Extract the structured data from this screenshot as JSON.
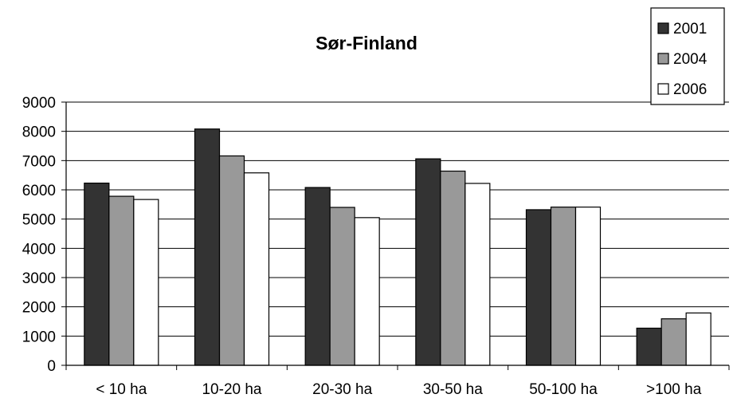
{
  "chart_data": {
    "type": "bar",
    "title": "Sør-Finland",
    "xlabel": "",
    "ylabel": "",
    "categories": [
      "< 10 ha",
      "10-20 ha",
      "20-30 ha",
      "30-50 ha",
      "50-100 ha",
      ">100 ha"
    ],
    "series": [
      {
        "name": "2001",
        "color": "#333333",
        "values": [
          6230,
          8080,
          6080,
          7060,
          5320,
          1270
        ]
      },
      {
        "name": "2004",
        "color": "#999999",
        "values": [
          5780,
          7160,
          5400,
          6640,
          5410,
          1590
        ]
      },
      {
        "name": "2006",
        "color": "#ffffff",
        "values": [
          5670,
          6580,
          5050,
          6220,
          5410,
          1790
        ]
      }
    ],
    "ylim": [
      0,
      9000
    ],
    "yticks": [
      "0",
      "1000",
      "2000",
      "3000",
      "4000",
      "5000",
      "6000",
      "7000",
      "8000",
      "9000"
    ],
    "grid": true,
    "legend_position": "top-right"
  }
}
